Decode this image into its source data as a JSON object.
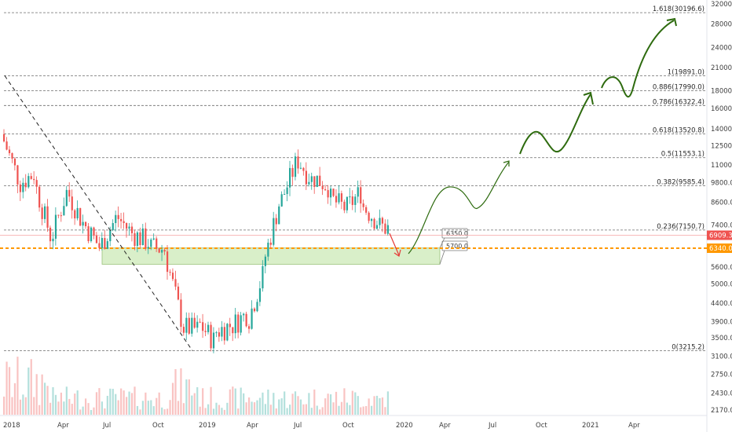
{
  "y_axis_labels": [
    "32000.0",
    "28000.0",
    "24000.0",
    "21000.0",
    "18000.0",
    "16000.0",
    "14000.0",
    "12500.0",
    "11000.0",
    "9800.0",
    "8600.0",
    "7400.0",
    "6400.0",
    "5600.0",
    "5000.0",
    "4400.0",
    "3900.0",
    "3500.0",
    "3100.0",
    "2750.0",
    "2430.0",
    "2170.0"
  ],
  "x_axis_labels": [
    "2018",
    "Apr",
    "Jul",
    "Oct",
    "2019",
    "Apr",
    "Jul",
    "Oct",
    "2020",
    "Apr",
    "Jul",
    "Oct",
    "2021",
    "Apr"
  ],
  "fib_levels": [
    {
      "label": "1.618(30196.6)",
      "price": 30196.6
    },
    {
      "label": "1(19891.0)",
      "price": 19891.0
    },
    {
      "label": "0.886(17990.0)",
      "price": 17990.0
    },
    {
      "label": "0.786(16322.4)",
      "price": 16322.4
    },
    {
      "label": "0.618(13520.8)",
      "price": 13520.8
    },
    {
      "label": "0.5(11553.1)",
      "price": 11553.1
    },
    {
      "label": "0.382(9585.4)",
      "price": 9585.4
    },
    {
      "label": "0.236(7150.7)",
      "price": 7150.7
    },
    {
      "label": "0(3215.2)",
      "price": 3215.2
    }
  ],
  "zone_labels": {
    "upper": "6350.0",
    "lower": "5700.0"
  },
  "price_tags": {
    "current": {
      "label": "6909.3",
      "color": "#ef5350"
    },
    "support": {
      "label": "6340.0",
      "color": "#ff9800"
    }
  },
  "colors": {
    "fib_line": "#6b6b6b",
    "projection": "#2e6b0f",
    "zone_fill": "#d9efc9",
    "zone_border": "#9bc27a",
    "candle_up": "#26a69a",
    "candle_down": "#ef5350",
    "current_line": "#f4a3a3",
    "support_line": "#ff9800",
    "trendline": "#222222",
    "red_arrow": "#e53935"
  },
  "chart_data": {
    "type": "candlestick",
    "symbol_quote": "USD",
    "x": [
      "2018-01",
      "2018-02",
      "2018-03",
      "2018-04",
      "2018-05",
      "2018-06",
      "2018-07",
      "2018-08",
      "2018-09",
      "2018-10",
      "2018-11",
      "2018-12",
      "2019-01",
      "2019-02",
      "2019-03",
      "2019-04",
      "2019-05",
      "2019-06",
      "2019-07",
      "2019-08",
      "2019-09",
      "2019-10",
      "2019-11",
      "2019-12"
    ],
    "close": [
      10200,
      10400,
      6900,
      9200,
      7500,
      6400,
      7700,
      7000,
      6600,
      6300,
      4000,
      3700,
      3450,
      3800,
      4100,
      5300,
      8500,
      11000,
      10000,
      9600,
      8300,
      9200,
      7600,
      7150
    ],
    "y_scale": "log",
    "ylim": [
      2100,
      32000
    ],
    "xlim": [
      "2018-01",
      "2021-06"
    ],
    "grid": false
  }
}
